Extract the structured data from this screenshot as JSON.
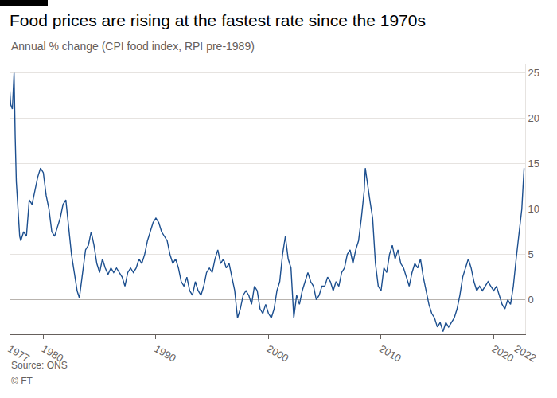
{
  "chart_data": {
    "type": "line",
    "title": "Food prices are rising at the fastest rate since the 1970s",
    "subtitle": "Annual % change (CPI food index, RPI pre-1989)",
    "annotations": [
      "Source: ONS",
      "© FT"
    ],
    "color": "#1c4f8f",
    "grid": true,
    "xlim": [
      1977,
      2022.8
    ],
    "xticks": [
      1977,
      1980,
      1990,
      2000,
      2010,
      2020,
      2022
    ],
    "ylim": [
      -3.8,
      26
    ],
    "yticks": [
      0,
      5,
      10,
      15,
      20,
      25
    ],
    "x": [
      1977.0,
      1977.1,
      1977.25,
      1977.4,
      1977.5,
      1977.6,
      1977.75,
      1977.9,
      1978.0,
      1978.25,
      1978.5,
      1978.75,
      1979.0,
      1979.25,
      1979.5,
      1979.75,
      1980.0,
      1980.25,
      1980.5,
      1980.75,
      1981.0,
      1981.25,
      1981.5,
      1981.75,
      1982.0,
      1982.25,
      1982.5,
      1982.75,
      1983.0,
      1983.2,
      1983.5,
      1983.75,
      1984.0,
      1984.25,
      1984.5,
      1984.75,
      1985.0,
      1985.25,
      1985.5,
      1985.75,
      1986.0,
      1986.25,
      1986.5,
      1986.75,
      1987.0,
      1987.25,
      1987.5,
      1987.75,
      1988.0,
      1988.25,
      1988.5,
      1988.75,
      1989.0,
      1989.25,
      1989.5,
      1989.75,
      1990.0,
      1990.25,
      1990.5,
      1990.75,
      1991.0,
      1991.25,
      1991.5,
      1991.75,
      1992.0,
      1992.25,
      1992.5,
      1992.75,
      1993.0,
      1993.25,
      1993.5,
      1993.75,
      1994.0,
      1994.25,
      1994.5,
      1994.75,
      1995.0,
      1995.25,
      1995.5,
      1995.75,
      1996.0,
      1996.25,
      1996.5,
      1996.75,
      1997.0,
      1997.25,
      1997.5,
      1997.75,
      1998.0,
      1998.25,
      1998.5,
      1998.75,
      1999.0,
      1999.25,
      1999.5,
      1999.75,
      2000.0,
      2000.25,
      2000.5,
      2000.75,
      2001.0,
      2001.25,
      2001.5,
      2001.75,
      2002.0,
      2002.25,
      2002.5,
      2002.75,
      2003.0,
      2003.25,
      2003.5,
      2003.75,
      2004.0,
      2004.25,
      2004.5,
      2004.75,
      2005.0,
      2005.25,
      2005.5,
      2005.75,
      2006.0,
      2006.25,
      2006.5,
      2006.75,
      2007.0,
      2007.25,
      2007.5,
      2007.75,
      2008.0,
      2008.25,
      2008.5,
      2008.6,
      2008.75,
      2009.0,
      2009.25,
      2009.5,
      2009.75,
      2010.0,
      2010.25,
      2010.5,
      2010.75,
      2011.0,
      2011.25,
      2011.5,
      2011.75,
      2012.0,
      2012.25,
      2012.5,
      2012.75,
      2013.0,
      2013.25,
      2013.5,
      2013.75,
      2014.0,
      2014.25,
      2014.5,
      2014.75,
      2015.0,
      2015.25,
      2015.5,
      2015.75,
      2016.0,
      2016.25,
      2016.5,
      2016.75,
      2017.0,
      2017.25,
      2017.5,
      2017.75,
      2018.0,
      2018.25,
      2018.5,
      2018.75,
      2019.0,
      2019.25,
      2019.5,
      2019.75,
      2020.0,
      2020.25,
      2020.5,
      2020.75,
      2021.0,
      2021.25,
      2021.5,
      2021.75,
      2022.0,
      2022.25,
      2022.5,
      2022.7
    ],
    "values": [
      23.5,
      21.5,
      21,
      25,
      18,
      13,
      10,
      7,
      6.5,
      7.5,
      7,
      11,
      10.5,
      12,
      13.5,
      14.5,
      14,
      11.5,
      10,
      7.5,
      7,
      8,
      9,
      10.5,
      11,
      8,
      5,
      3,
      1,
      0.2,
      3,
      5.5,
      6,
      7.5,
      6,
      4,
      3,
      4.5,
      3.5,
      2.8,
      3.5,
      3,
      3.5,
      3,
      2.5,
      1.5,
      3,
      3.5,
      3,
      3.5,
      4.5,
      4,
      5,
      6.5,
      7.5,
      8.5,
      9,
      8.5,
      7.5,
      7,
      6.5,
      5,
      4,
      4.5,
      3.5,
      2,
      1.5,
      2.5,
      1,
      0.5,
      2,
      1,
      0.5,
      1.5,
      3,
      3.5,
      3,
      4.5,
      5.5,
      4,
      4.5,
      3.5,
      4,
      2.5,
      1,
      -2,
      -1,
      0.5,
      1,
      0.5,
      -0.5,
      1.5,
      1,
      -1,
      -1.5,
      -0.5,
      -1.5,
      -2,
      -1,
      1,
      2,
      5,
      7,
      4.5,
      3.5,
      -2,
      0.5,
      -0.5,
      1,
      2,
      3,
      2,
      1.5,
      0,
      0.5,
      1.5,
      1.5,
      2.5,
      2,
      1,
      2,
      1.5,
      3,
      3.5,
      5,
      5.5,
      4,
      5.5,
      6.5,
      9,
      12,
      14.5,
      13,
      11,
      9,
      4,
      1.5,
      1,
      3.5,
      3,
      5,
      6,
      4.5,
      5.5,
      4,
      3.5,
      2.5,
      1.5,
      3,
      4,
      3.5,
      4.5,
      2.5,
      1,
      -0.5,
      -1.5,
      -2,
      -3,
      -2.5,
      -3.5,
      -2.5,
      -3,
      -2.5,
      -2,
      -1,
      0.5,
      2.5,
      3.5,
      4.5,
      3.5,
      2,
      1,
      1.5,
      1,
      1.5,
      2,
      1.5,
      1,
      1.5,
      0.5,
      -0.5,
      -1,
      0,
      -0.5,
      1.5,
      4.5,
      7,
      10,
      14.5
    ]
  }
}
